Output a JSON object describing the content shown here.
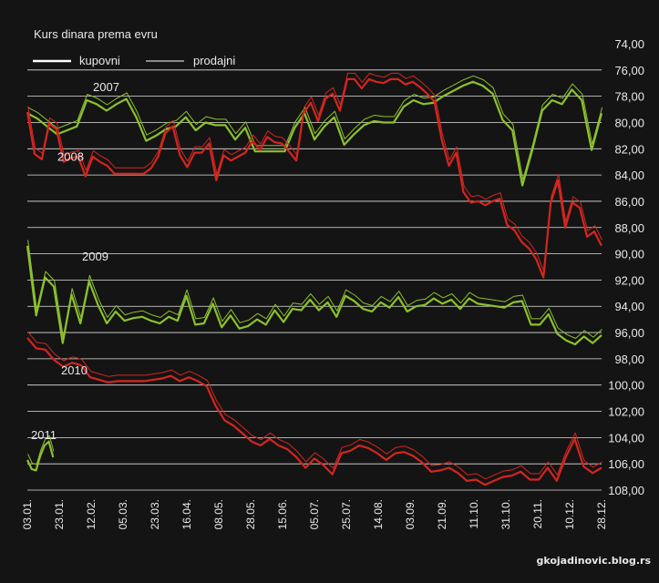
{
  "chart_data": {
    "type": "line",
    "title": "Kurs dinara prema evru",
    "legend": {
      "position": "top-left",
      "entries": [
        {
          "label": "kupovni",
          "style": "thick"
        },
        {
          "label": "prodajni",
          "style": "thin"
        }
      ]
    },
    "y_axis": {
      "position": "right",
      "inverted": true,
      "ylim": [
        74,
        108
      ],
      "ticks": [
        "74,00",
        "76,00",
        "78,00",
        "80,00",
        "82,00",
        "84,00",
        "86,00",
        "88,00",
        "90,00",
        "92,00",
        "94,00",
        "96,00",
        "98,00",
        "100,00",
        "102,00",
        "104,00",
        "106,00",
        "108,00"
      ]
    },
    "x_axis": {
      "ticks": [
        "03.01.",
        "23.01.",
        "12.02.",
        "05.03.",
        "23.03.",
        "16.04.",
        "08.05.",
        "28.05.",
        "15.06.",
        "05.07.",
        "25.07.",
        "14.08.",
        "03.09.",
        "21.09.",
        "11.10.",
        "31.10.",
        "20.11.",
        "10.12.",
        "28.12."
      ]
    },
    "grid": true,
    "series": [
      {
        "name": "2007",
        "label_tick": "12.02.",
        "values": [
          79.3,
          79.7,
          80.3,
          80.9,
          80.6,
          80.3,
          78.3,
          78.6,
          79.1,
          78.6,
          78.2,
          79.6,
          81.4,
          81.0,
          80.5,
          80.3,
          79.6,
          80.6,
          80.0,
          80.2,
          80.2,
          81.3,
          80.4,
          82.2,
          82.2,
          82.2,
          82.2,
          80.4,
          79.3,
          81.3,
          80.3,
          79.6,
          81.7,
          80.9,
          80.2,
          79.9,
          80.0,
          80.0,
          78.8,
          78.3,
          78.6,
          78.5,
          78.0,
          77.6,
          77.2,
          76.9,
          77.2,
          77.8,
          79.8,
          80.6,
          84.8,
          82.1,
          79.1,
          78.3,
          78.6,
          77.5,
          78.3,
          82.1,
          79.3
        ]
      },
      {
        "name": "2008",
        "label_tick": "23.01.",
        "values": [
          79.2,
          82.4,
          82.8,
          80.1,
          80.5,
          83.0,
          82.7,
          82.6,
          84.1,
          82.6,
          83.0,
          83.3,
          83.9,
          83.9,
          83.9,
          83.9,
          83.9,
          83.5,
          82.6,
          80.8,
          80.3,
          82.5,
          83.4,
          82.3,
          82.3,
          81.6,
          84.4,
          82.5,
          82.9,
          82.6,
          82.3,
          81.4,
          82.1,
          81.1,
          81.5,
          81.6,
          82.2,
          82.9,
          79.3,
          78.5,
          79.9,
          78.2,
          77.8,
          79.1,
          76.7,
          76.7,
          77.4,
          76.7,
          76.9,
          77.0,
          76.7,
          76.7,
          77.1,
          76.9,
          77.3,
          77.8,
          78.4,
          81.3,
          83.3,
          82.3,
          85.3,
          86.1,
          86.0,
          86.3,
          86.0,
          85.8,
          87.8,
          88.2,
          89.1,
          89.6,
          90.4,
          91.8,
          86.1,
          84.4,
          88.0,
          86.1,
          86.5,
          88.7,
          88.3,
          89.4
        ]
      },
      {
        "name": "2009",
        "label_tick": "12.02.",
        "values": [
          89.4,
          94.7,
          91.8,
          92.5,
          96.8,
          93.1,
          95.3,
          92.1,
          93.9,
          95.3,
          94.4,
          95.1,
          94.9,
          94.8,
          95.1,
          95.3,
          94.8,
          95.1,
          93.2,
          95.4,
          95.3,
          93.8,
          95.6,
          94.7,
          95.7,
          95.5,
          95.0,
          95.4,
          94.3,
          95.2,
          94.2,
          94.3,
          93.5,
          94.3,
          93.7,
          94.8,
          93.2,
          93.6,
          94.2,
          94.4,
          93.7,
          94.1,
          93.3,
          94.4,
          94.0,
          93.9,
          93.4,
          93.8,
          93.5,
          94.2,
          93.4,
          93.8,
          93.9,
          94.0,
          94.1,
          93.7,
          93.6,
          95.4,
          95.4,
          94.6,
          96.1,
          96.6,
          96.9,
          96.3,
          96.8,
          96.2
        ]
      },
      {
        "name": "2010",
        "label_tick": "23.01.",
        "values": [
          96.4,
          97.2,
          97.3,
          98.1,
          98.6,
          98.3,
          98.5,
          99.4,
          99.6,
          99.8,
          99.7,
          99.7,
          99.7,
          99.7,
          99.6,
          99.5,
          99.3,
          99.7,
          99.4,
          99.7,
          100.1,
          101.6,
          102.7,
          103.1,
          103.7,
          104.3,
          104.6,
          104.1,
          104.6,
          104.9,
          105.5,
          106.3,
          105.6,
          106.1,
          106.8,
          105.2,
          105.0,
          104.6,
          104.8,
          105.2,
          105.7,
          105.2,
          105.1,
          105.4,
          105.9,
          106.6,
          106.5,
          106.3,
          106.7,
          107.3,
          107.2,
          107.6,
          107.3,
          107.0,
          106.9,
          106.6,
          107.2,
          107.2,
          106.3,
          107.3,
          105.5,
          104.1,
          106.2,
          106.7,
          106.3
        ]
      },
      {
        "name": "2011",
        "label_tick": "03.01.",
        "values": [
          105.7,
          106.4,
          106.5,
          105.4,
          104.6,
          104.3,
          105.5
        ]
      }
    ]
  },
  "watermark": "gkojadinovic.blog.rs",
  "colors": {
    "background": "#141414",
    "grid": "#e0e0e0",
    "text": "#e8e8e8",
    "green_series": "#8cc12d",
    "red_series": "#d3261f"
  }
}
